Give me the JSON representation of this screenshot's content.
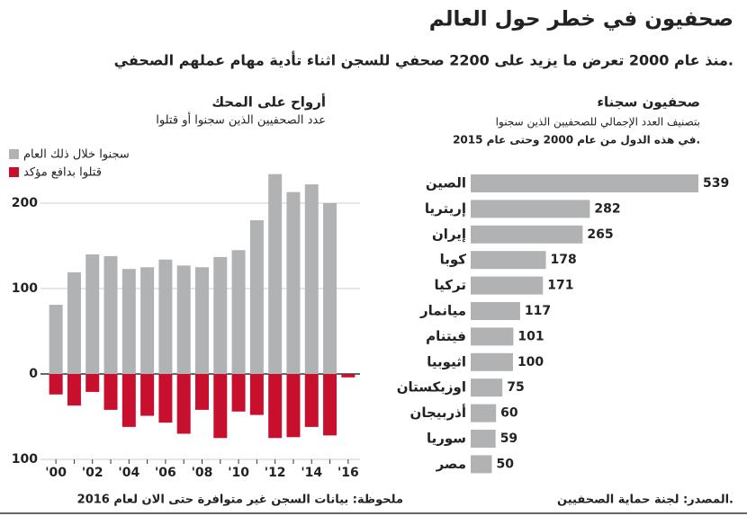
{
  "title": "صحفيون في خطر حول العالم",
  "subtitle": "منذ عام 2000 تعرض ما يزيد على 2200 صحفي للسجن اثناء تأدية مهام عملهم الصحفي.",
  "note": "ملحوظة: بيانات السجن غير متوافرة حتى الان لعام 2016",
  "source": "المصدر: لجنة حماية الصحفيين.",
  "chart_data": [
    {
      "type": "diverging-bar",
      "title": "أرواح على المحك",
      "subtitle": "عدد الصحفيين الذين سجنوا أو قتلوا",
      "categories": [
        "'00",
        null,
        "'02",
        null,
        "'04",
        null,
        "'06",
        null,
        "'08",
        null,
        "'10",
        null,
        "'12",
        null,
        "'14",
        null,
        "'16"
      ],
      "series": [
        {
          "name": "سجنوا خلال ذلك العام",
          "color": "#b1b2b4",
          "values": [
            81,
            119,
            140,
            138,
            123,
            125,
            134,
            127,
            125,
            137,
            145,
            180,
            234,
            213,
            222,
            200,
            null
          ]
        },
        {
          "name": "قتلوا بدافع مؤكد",
          "color": "#c8102e",
          "values": [
            -24,
            -37,
            -21,
            -42,
            -62,
            -49,
            -57,
            -70,
            -42,
            -75,
            -44,
            -48,
            -75,
            -74,
            -62,
            -72,
            -4
          ]
        }
      ],
      "ylim": [
        -100,
        240
      ],
      "yticks": [
        {
          "value": -100,
          "label": "100"
        },
        0,
        100,
        200
      ],
      "grid": true
    },
    {
      "type": "hbar",
      "title": "صحفيون سجناء",
      "subtitle": [
        "بتصنيف العدد الإجمالي للصحفيين الذين سجنوا",
        "في هذه الدول من عام 2000 وحتى عام 2015."
      ],
      "categories": [
        "الصين",
        "إريتريا",
        "إيران",
        "كوبا",
        "تركيا",
        "ميانمار",
        "فيتنام",
        "اثيوبيا",
        "اوزبكستان",
        "أذربيجان",
        "سوريا",
        "مصر"
      ],
      "values": [
        539,
        282,
        265,
        178,
        171,
        117,
        101,
        100,
        75,
        60,
        59,
        50
      ],
      "color": "#b1b2b4"
    }
  ]
}
